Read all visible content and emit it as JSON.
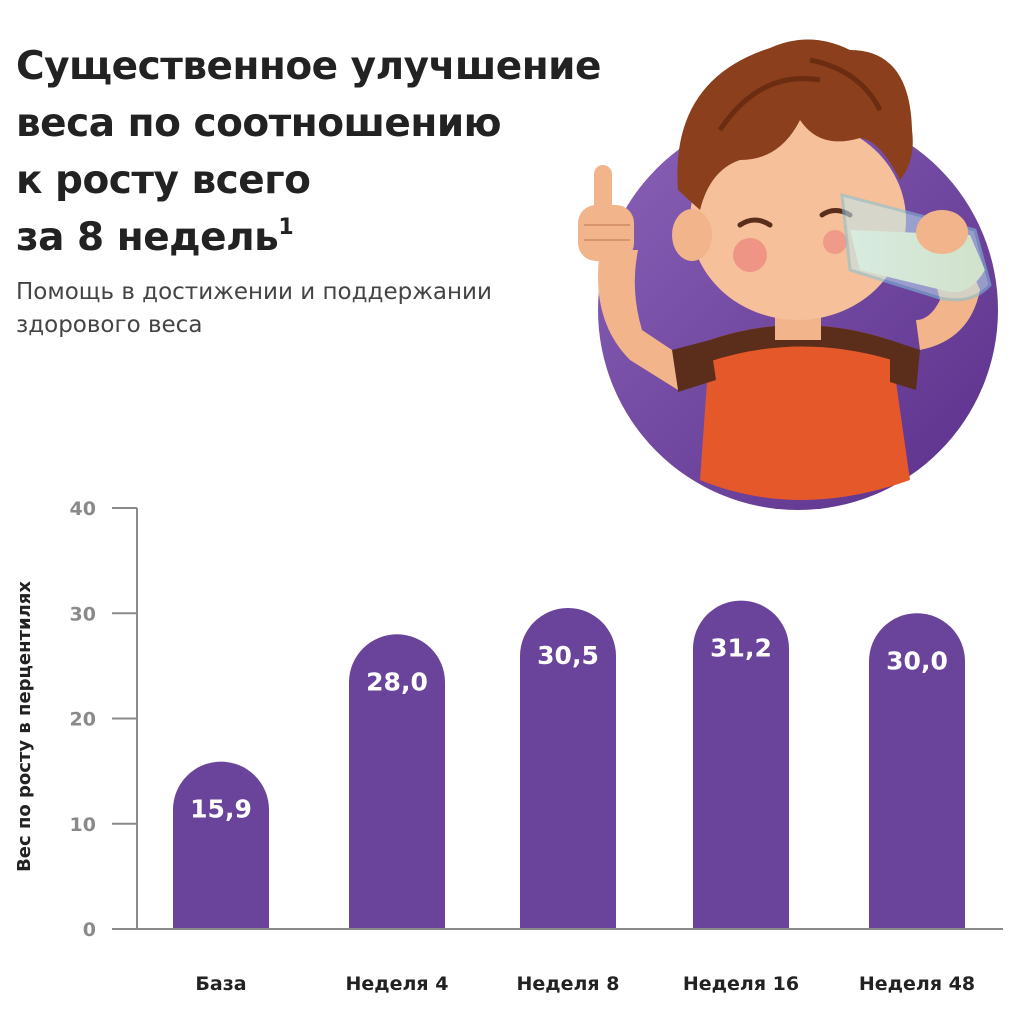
{
  "header": {
    "title_lines": [
      "Существенное улучшение",
      "веса по соотношению",
      "к росту всего",
      "за 8 недель"
    ],
    "title_footnote": "1",
    "subtitle_lines": [
      "Помощь в достижении и поддержании",
      "здорового веса"
    ]
  },
  "colors": {
    "bar": "#6a449b",
    "circle": "#6c3f9a",
    "axis": "#8a8a8a",
    "shirt": "#e5582a",
    "hair": "#8b3f1c"
  },
  "chart_data": {
    "type": "bar",
    "categories": [
      "База",
      "Неделя 4",
      "Неделя 8",
      "Неделя 16",
      "Неделя 48"
    ],
    "values": [
      15.9,
      28.0,
      30.5,
      31.2,
      30.0
    ],
    "value_labels": [
      "15,9",
      "28,0",
      "30,5",
      "31,2",
      "30,0"
    ],
    "title": "",
    "xlabel": "",
    "ylabel": "Вес по росту в перцентилях",
    "ylim": [
      0,
      40
    ],
    "yticks": [
      0,
      10,
      20,
      30,
      40
    ],
    "grid": false,
    "legend": "none"
  }
}
